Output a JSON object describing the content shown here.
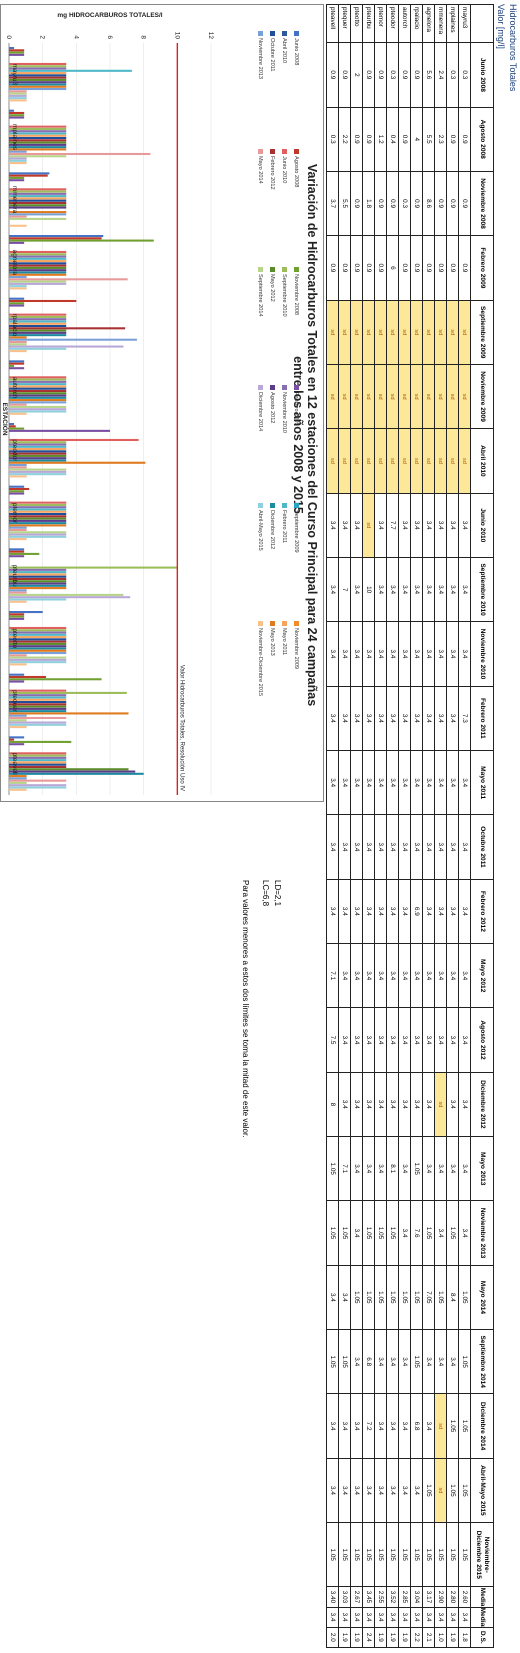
{
  "header": {
    "title": "Hidrocarburos Totales",
    "subtitle": "Valor [mg/l]"
  },
  "table": {
    "columns": [
      "",
      "Junio 2008",
      "Agosto 2008",
      "Noviembre 2008",
      "Febrero 2009",
      "Septiembre 2009",
      "Noviembre 2009",
      "Abril 2010",
      "Junio 2010",
      "Septiembre 2010",
      "Noviembre 2010",
      "Febrero 2011",
      "Mayo 2011",
      "Octubre 2011",
      "Febrero 2012",
      "Mayo 2012",
      "Agosto 2012",
      "Diciembre 2012",
      "Mayo 2013",
      "Noviembre 2013",
      "Mayo 2014",
      "Septiembre 2014",
      "Diciembre 2014",
      "Abril-Mayo 2015",
      "Noviembre-Diciembre 2015",
      "Media",
      "Mediana",
      "D.S."
    ],
    "rows": [
      [
        "mayru3",
        "0.3",
        "0.9",
        "0.9",
        "0.9",
        "sd",
        "sd",
        "sd",
        "3.4",
        "3.4",
        "3.4",
        "7.3",
        "3.4",
        "3.4",
        "3.4",
        "3.4",
        "3.4",
        "3.4",
        "3.4",
        "3.4",
        "1.05",
        "1.05",
        "1.05",
        "1.05",
        "1.05",
        "2.60",
        "3.4",
        "1.8"
      ],
      [
        "mplaines",
        "0.3",
        "0.9",
        "0.9",
        "0.9",
        "sd",
        "sd",
        "sd",
        "3.4",
        "3.4",
        "3.4",
        "3.4",
        "3.4",
        "3.4",
        "3.4",
        "3.4",
        "3.4",
        "3.4",
        "3.4",
        "1.05",
        "8.4",
        "3.4",
        "1.05",
        "1.05",
        "1.05",
        "2.80",
        "3.4",
        "1.9"
      ],
      [
        "mmenera",
        "2.4",
        "2.3",
        "0.9",
        "0.9",
        "sd",
        "sd",
        "sd",
        "3.4",
        "3.4",
        "3.4",
        "3.4",
        "3.4",
        "3.4",
        "3.4",
        "3.4",
        "3.4",
        "sd",
        "3.4",
        "3.4",
        "1.05",
        "3.4",
        "sd",
        "sd",
        "1.05",
        "2.90",
        "3.4",
        "1.0"
      ],
      [
        "agnelora",
        "5.6",
        "5.5",
        "8.6",
        "0.9",
        "sd",
        "sd",
        "sd",
        "3.4",
        "3.4",
        "3.4",
        "3.4",
        "3.4",
        "3.4",
        "3.4",
        "3.4",
        "3.4",
        "3.4",
        "3.4",
        "1.05",
        "7.05",
        "3.4",
        "3.4",
        "1.05",
        "1.05",
        "3.17",
        "3.4",
        "2.1"
      ],
      [
        "rpalacio",
        "0.9",
        "4",
        "0.9",
        "0.9",
        "sd",
        "sd",
        "sd",
        "3.4",
        "3.4",
        "3.4",
        "3.4",
        "3.4",
        "3.4",
        "6.9",
        "3.4",
        "3.4",
        "3.4",
        "1.05",
        "7.6",
        "1.05",
        "1.05",
        "6.8",
        "3.4",
        "1.05",
        "3.04",
        "3.4",
        "2.2"
      ],
      [
        "autorch",
        "0.9",
        "0.9",
        "0.3",
        "0.9",
        "sd",
        "sd",
        "sd",
        "3.4",
        "3.4",
        "3.4",
        "3.4",
        "3.4",
        "3.4",
        "3.4",
        "3.4",
        "3.4",
        "3.4",
        "3.4",
        "3.4",
        "1.05",
        "3.4",
        "3.4",
        "3.4",
        "1.05",
        "2.85",
        "3.4",
        "1.9"
      ],
      [
        "pteodor",
        "0.3",
        "0.4",
        "0.9",
        "6",
        "sd",
        "sd",
        "sd",
        "7.7",
        "3.4",
        "3.4",
        "3.4",
        "3.4",
        "3.4",
        "3.4",
        "3.4",
        "3.4",
        "3.4",
        "8.1",
        "1.05",
        "1.05",
        "3.4",
        "3.4",
        "3.4",
        "1.05",
        "3.52",
        "3.4",
        "1.9"
      ],
      [
        "ptemor",
        "0.9",
        "1.2",
        "0.9",
        "0.9",
        "sd",
        "sd",
        "sd",
        "3.4",
        "3.4",
        "3.4",
        "3.4",
        "3.4",
        "3.4",
        "3.4",
        "3.4",
        "3.4",
        "3.4",
        "3.4",
        "1.05",
        "1.05",
        "3.4",
        "3.4",
        "3.4",
        "1.05",
        "2.55",
        "3.4",
        "1.9"
      ],
      [
        "pteurbu",
        "0.9",
        "0.9",
        "1.8",
        "0.9",
        "sd",
        "sd",
        "sd",
        "sd",
        "10",
        "3.4",
        "3.4",
        "3.4",
        "3.4",
        "3.4",
        "3.4",
        "3.4",
        "3.4",
        "3.4",
        "1.05",
        "1.05",
        "6.8",
        "7.2",
        "3.4",
        "1.05",
        "3.45",
        "3.4",
        "2.4"
      ],
      [
        "pteotto",
        "2",
        "0.9",
        "0.9",
        "0.9",
        "sd",
        "sd",
        "sd",
        "3.4",
        "3.4",
        "3.4",
        "3.4",
        "3.4",
        "3.4",
        "3.4",
        "3.4",
        "3.4",
        "3.4",
        "3.4",
        "3.4",
        "1.05",
        "3.4",
        "3.4",
        "3.4",
        "1.05",
        "2.67",
        "3.4",
        "1.9"
      ],
      [
        "ptequer",
        "0.9",
        "2.2",
        "5.5",
        "0.9",
        "sd",
        "sd",
        "sd",
        "3.4",
        "7",
        "3.4",
        "3.4",
        "3.4",
        "3.4",
        "3.4",
        "3.4",
        "3.4",
        "3.4",
        "7.1",
        "1.05",
        "3.4",
        "1.05",
        "3.4",
        "3.4",
        "1.05",
        "3.03",
        "3.4",
        "1.9"
      ],
      [
        "pteavell",
        "0.9",
        "0.3",
        "3.7",
        "0.9",
        "sd",
        "sd",
        "sd",
        "3.4",
        "3.4",
        "3.4",
        "3.4",
        "3.4",
        "3.4",
        "3.4",
        "7.1",
        "7.5",
        "8",
        "1.05",
        "1.05",
        "3.4",
        "1.05",
        "3.4",
        "3.4",
        "1.05",
        "3.40",
        "3.4",
        "2.0"
      ]
    ]
  },
  "notes": {
    "ld": "LD=2,1",
    "lc": "LC=6,8",
    "text": "Para valores menores a estos dos límites se toma la mitad de este valor."
  },
  "chart_data": {
    "type": "bar",
    "title": "Variación de Hidrocarburos Totales en 12 estaciones del Curso Principal para 24 campañas entre los años 2008 y 2015",
    "xlabel": "ESTACIÓN",
    "ylabel": "mg HIDROCARBUROS TOTALES/l",
    "ylim": [
      0,
      12
    ],
    "yticks": [
      "0",
      "2",
      "4",
      "6",
      "8",
      "10",
      "12"
    ],
    "reference_line": {
      "value": 10,
      "label": "Valor Hidrocarburos Totales, Resolución Uso IV",
      "color": "#e02020"
    },
    "categories": [
      "mayru3",
      "mplaines",
      "mmenera",
      "agnelora",
      "rpalacio",
      "autorch",
      "pteodor",
      "ptemor",
      "pteurbu",
      "pteotto",
      "ptequer",
      "pteavell"
    ],
    "series": [
      {
        "name": "Junio 2008",
        "color": "#4472c4",
        "values": [
          0.3,
          0.3,
          2.4,
          5.6,
          0.9,
          0.9,
          0.3,
          0.9,
          0.9,
          2,
          0.9,
          0.9
        ]
      },
      {
        "name": "Agosto 2008",
        "color": "#c0392b",
        "values": [
          0.9,
          0.9,
          2.3,
          5.5,
          4,
          0.9,
          0.4,
          1.2,
          0.9,
          0.9,
          2.2,
          0.3
        ]
      },
      {
        "name": "Noviembre 2008",
        "color": "#70a030",
        "values": [
          0.9,
          0.9,
          0.9,
          8.6,
          0.9,
          0.3,
          0.9,
          0.9,
          1.8,
          0.9,
          5.5,
          3.7
        ]
      },
      {
        "name": "Febrero 2009",
        "color": "#7a4fa3",
        "values": [
          0.9,
          0.9,
          0.9,
          0.9,
          0.9,
          0.9,
          6,
          0.9,
          0.9,
          0.9,
          0.9,
          0.9
        ]
      },
      {
        "name": "Septiembre 2009",
        "color": "#2aa6c2",
        "values": [
          0,
          0,
          0,
          0,
          0,
          0,
          0,
          0,
          0,
          0,
          0,
          0
        ]
      },
      {
        "name": "Noviembre 2009",
        "color": "#f08c2a",
        "values": [
          0,
          0,
          0,
          0,
          0,
          0,
          0,
          0,
          0,
          0,
          0,
          0
        ]
      },
      {
        "name": "Abril 2010",
        "color": "#2e5a9a",
        "values": [
          0,
          0,
          0,
          0,
          0,
          0,
          0,
          0,
          0,
          0,
          0,
          0
        ]
      },
      {
        "name": "Junio 2010",
        "color": "#e06060",
        "values": [
          3.4,
          3.4,
          3.4,
          3.4,
          3.4,
          3.4,
          7.7,
          3.4,
          0,
          3.4,
          3.4,
          3.4
        ]
      },
      {
        "name": "Septiembre 2010",
        "color": "#9cbd5a",
        "values": [
          3.4,
          3.4,
          3.4,
          3.4,
          3.4,
          3.4,
          3.4,
          3.4,
          10,
          3.4,
          7,
          3.4
        ]
      },
      {
        "name": "Noviembre 2010",
        "color": "#8a6fb0",
        "values": [
          3.4,
          3.4,
          3.4,
          3.4,
          3.4,
          3.4,
          3.4,
          3.4,
          3.4,
          3.4,
          3.4,
          3.4
        ]
      },
      {
        "name": "Febrero 2011",
        "color": "#4fb8c8",
        "values": [
          7.3,
          3.4,
          3.4,
          3.4,
          3.4,
          3.4,
          3.4,
          3.4,
          3.4,
          3.4,
          3.4,
          3.4
        ]
      },
      {
        "name": "Mayo 2011",
        "color": "#f6a460",
        "values": [
          3.4,
          3.4,
          3.4,
          3.4,
          3.4,
          3.4,
          3.4,
          3.4,
          3.4,
          3.4,
          3.4,
          3.4
        ]
      },
      {
        "name": "Octubre 2011",
        "color": "#1f4e9a",
        "values": [
          3.4,
          3.4,
          3.4,
          3.4,
          3.4,
          3.4,
          3.4,
          3.4,
          3.4,
          3.4,
          3.4,
          3.4
        ]
      },
      {
        "name": "Febrero 2012",
        "color": "#a83232",
        "values": [
          3.4,
          3.4,
          3.4,
          3.4,
          6.9,
          3.4,
          3.4,
          3.4,
          3.4,
          3.4,
          3.4,
          3.4
        ]
      },
      {
        "name": "Mayo 2012",
        "color": "#5b8c2a",
        "values": [
          3.4,
          3.4,
          3.4,
          3.4,
          3.4,
          3.4,
          3.4,
          3.4,
          3.4,
          3.4,
          3.4,
          7.1
        ]
      },
      {
        "name": "Agosto 2012",
        "color": "#5c3d8a",
        "values": [
          3.4,
          3.4,
          3.4,
          3.4,
          3.4,
          3.4,
          3.4,
          3.4,
          3.4,
          3.4,
          3.4,
          7.5
        ]
      },
      {
        "name": "Diciembre 2012",
        "color": "#1e8aa0",
        "values": [
          3.4,
          3.4,
          0,
          3.4,
          3.4,
          3.4,
          3.4,
          3.4,
          3.4,
          3.4,
          3.4,
          8
        ]
      },
      {
        "name": "Mayo 2013",
        "color": "#e07a1e",
        "values": [
          3.4,
          3.4,
          3.4,
          3.4,
          1.05,
          3.4,
          8.1,
          3.4,
          3.4,
          3.4,
          7.1,
          1.05
        ]
      },
      {
        "name": "Noviembre 2013",
        "color": "#7aa0d8",
        "values": [
          3.4,
          1.05,
          3.4,
          1.05,
          7.6,
          3.4,
          1.05,
          1.05,
          1.05,
          3.4,
          1.05,
          1.05
        ]
      },
      {
        "name": "Mayo 2014",
        "color": "#e89a9a",
        "values": [
          1.05,
          8.4,
          1.05,
          7.05,
          1.05,
          1.05,
          1.05,
          1.05,
          1.05,
          1.05,
          3.4,
          3.4
        ]
      },
      {
        "name": "Septiembre 2014",
        "color": "#b8d48a",
        "values": [
          1.05,
          3.4,
          3.4,
          3.4,
          1.05,
          3.4,
          3.4,
          3.4,
          6.8,
          3.4,
          1.05,
          1.05
        ]
      },
      {
        "name": "Diciembre 2014",
        "color": "#b8a8d8",
        "values": [
          1.05,
          1.05,
          0,
          3.4,
          6.8,
          3.4,
          3.4,
          3.4,
          7.2,
          3.4,
          3.4,
          3.4
        ]
      },
      {
        "name": "Abril-Mayo 2015",
        "color": "#8fd0dc",
        "values": [
          1.05,
          1.05,
          0,
          1.05,
          3.4,
          3.4,
          3.4,
          3.4,
          3.4,
          3.4,
          3.4,
          3.4
        ]
      },
      {
        "name": "Noviembre-Diciembre 2015",
        "color": "#f8c08a",
        "values": [
          1.05,
          1.05,
          1.05,
          1.05,
          1.05,
          1.05,
          1.05,
          1.05,
          1.05,
          1.05,
          1.05,
          1.05
        ]
      }
    ]
  }
}
